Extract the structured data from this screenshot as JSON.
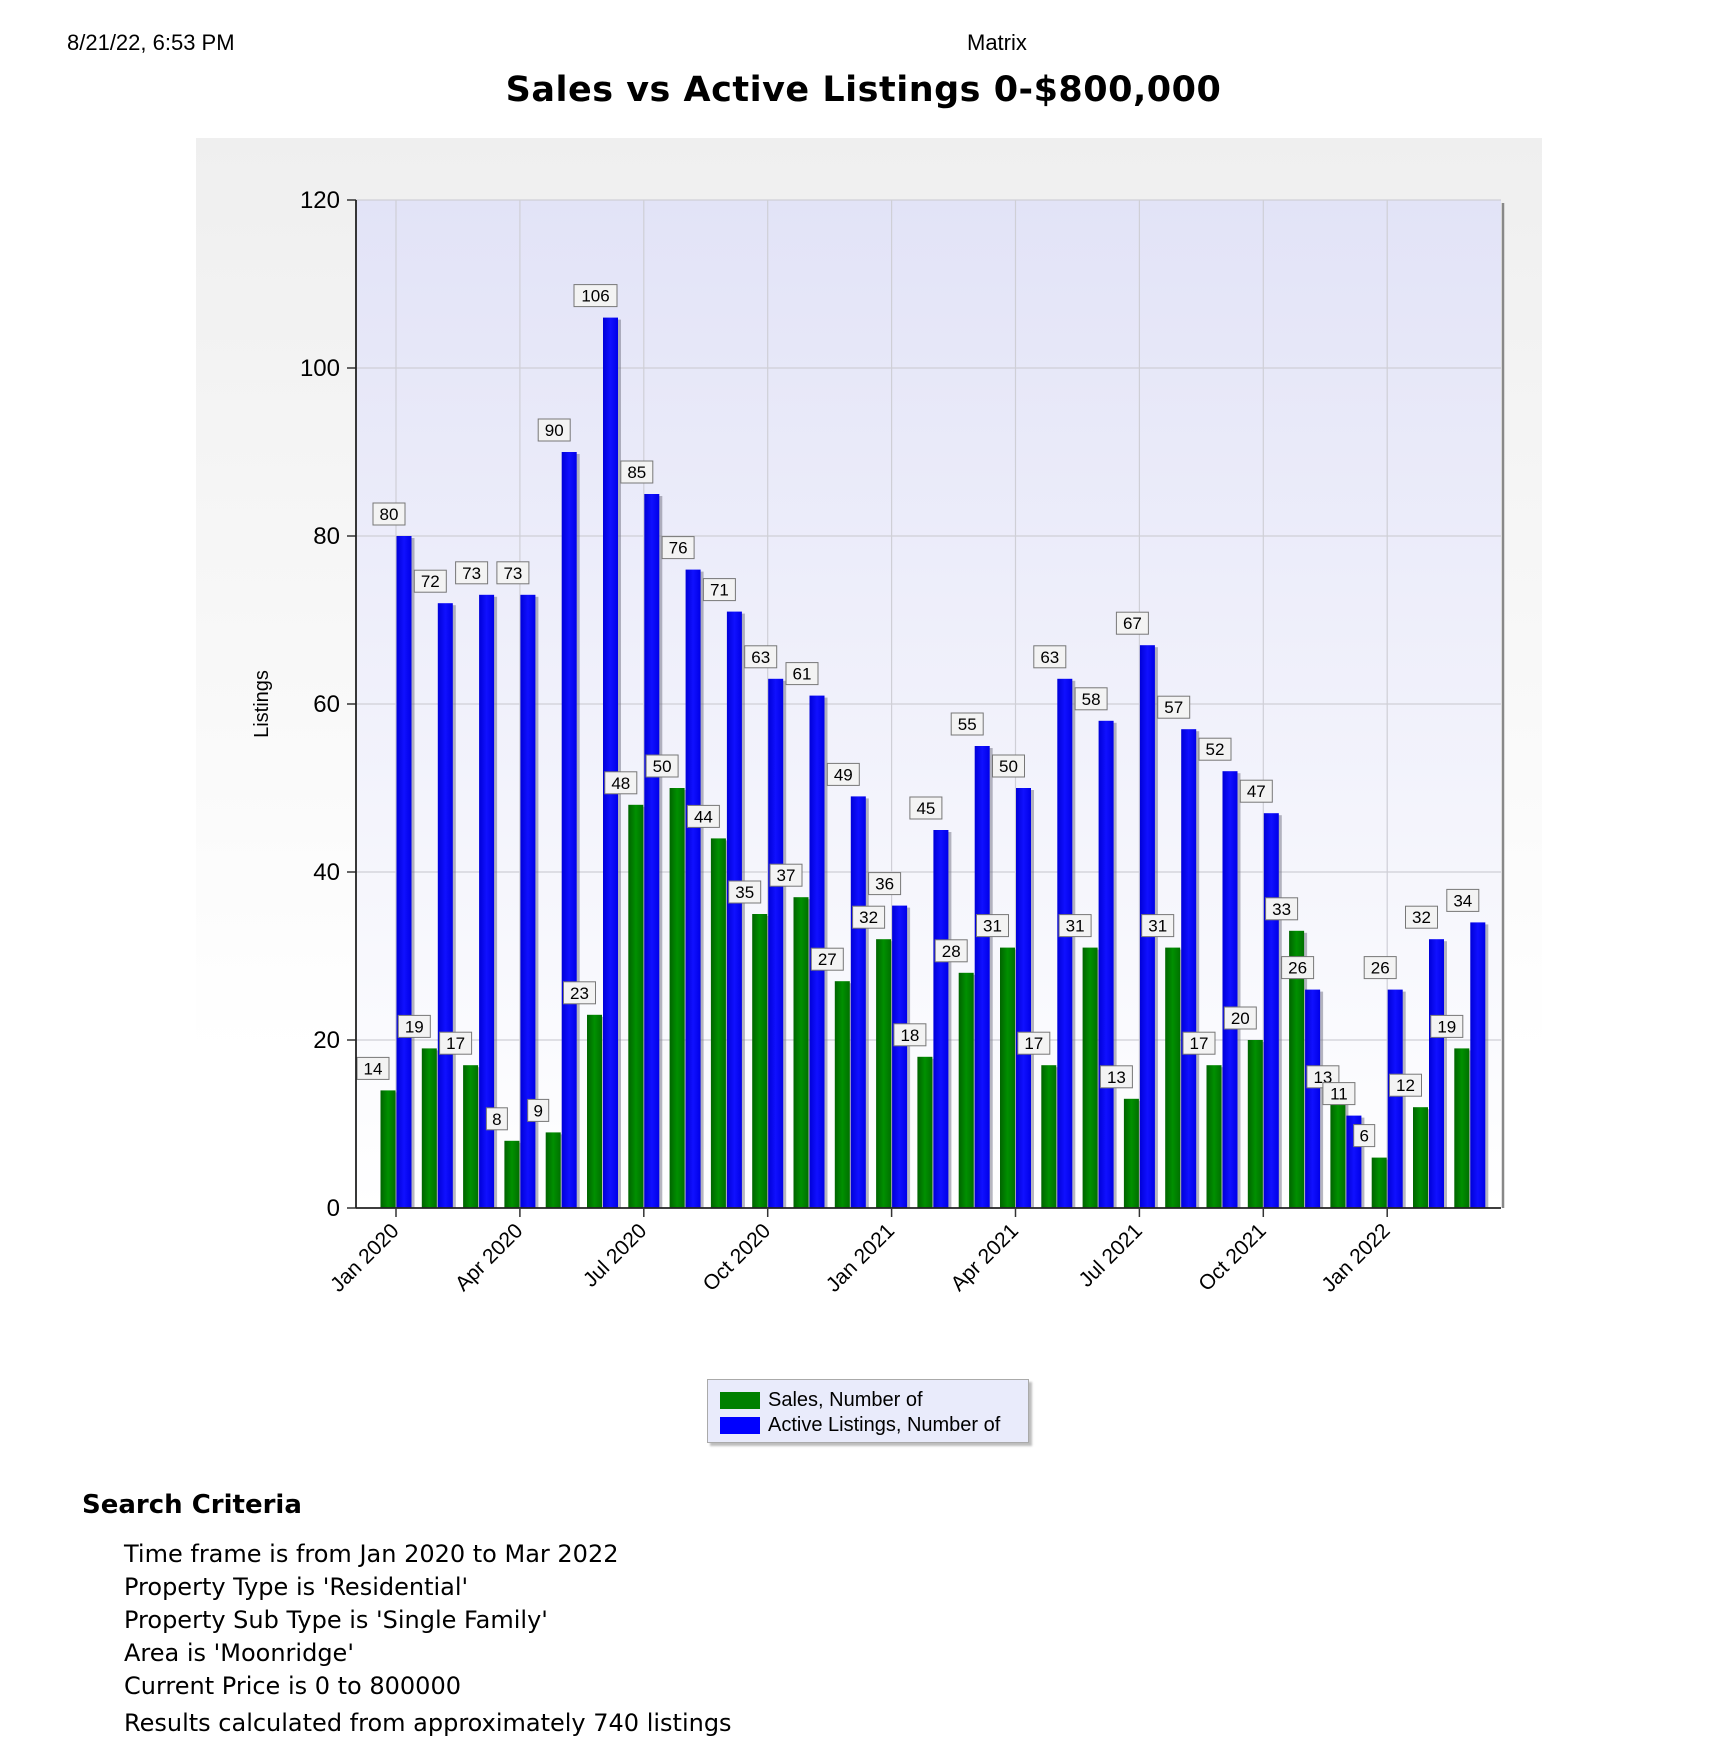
{
  "header": {
    "date": "8/21/22, 6:53 PM",
    "app": "Matrix"
  },
  "chart_data": {
    "type": "bar",
    "title": "Sales vs Active Listings 0-$800,000",
    "xlabel": "",
    "ylabel": "Listings",
    "ylim": [
      0,
      120
    ],
    "yticks": [
      "0",
      "20",
      "40",
      "60",
      "80",
      "100",
      "120"
    ],
    "categories": [
      "Jan 2020",
      "Feb 2020",
      "Mar 2020",
      "Apr 2020",
      "May 2020",
      "Jun 2020",
      "Jul 2020",
      "Aug 2020",
      "Sep 2020",
      "Oct 2020",
      "Nov 2020",
      "Dec 2020",
      "Jan 2021",
      "Feb 2021",
      "Mar 2021",
      "Apr 2021",
      "May 2021",
      "Jun 2021",
      "Jul 2021",
      "Aug 2021",
      "Sep 2021",
      "Oct 2021",
      "Nov 2021",
      "Dec 2021",
      "Jan 2022",
      "Feb 2022",
      "Mar 2022"
    ],
    "xtick_labels": [
      "Jan 2020",
      "Apr 2020",
      "Jul 2020",
      "Oct 2020",
      "Jan 2021",
      "Apr 2021",
      "Jul 2021",
      "Oct 2021",
      "Jan 2022"
    ],
    "series": [
      {
        "name": "Sales, Number of",
        "color": "#008000",
        "values": [
          14,
          19,
          17,
          8,
          9,
          23,
          48,
          50,
          44,
          35,
          37,
          27,
          32,
          18,
          28,
          31,
          17,
          31,
          13,
          31,
          17,
          20,
          33,
          13,
          6,
          12,
          19
        ]
      },
      {
        "name": "Active Listings, Number of",
        "color": "#0000ff",
        "values": [
          80,
          72,
          73,
          73,
          90,
          106,
          85,
          76,
          71,
          63,
          61,
          49,
          36,
          45,
          55,
          50,
          63,
          58,
          67,
          57,
          52,
          47,
          26,
          11,
          26,
          32,
          34
        ]
      }
    ],
    "grid": true,
    "legend_position": "bottom-center"
  },
  "criteria": {
    "title": "Search Criteria",
    "lines": [
      "Time frame is from Jan 2020 to Mar 2022",
      "Property Type is 'Residential'",
      "Property Sub Type is 'Single Family'",
      "Area is 'Moonridge'",
      "Current Price is 0 to 800000"
    ],
    "result": "Results calculated from approximately 740 listings"
  }
}
